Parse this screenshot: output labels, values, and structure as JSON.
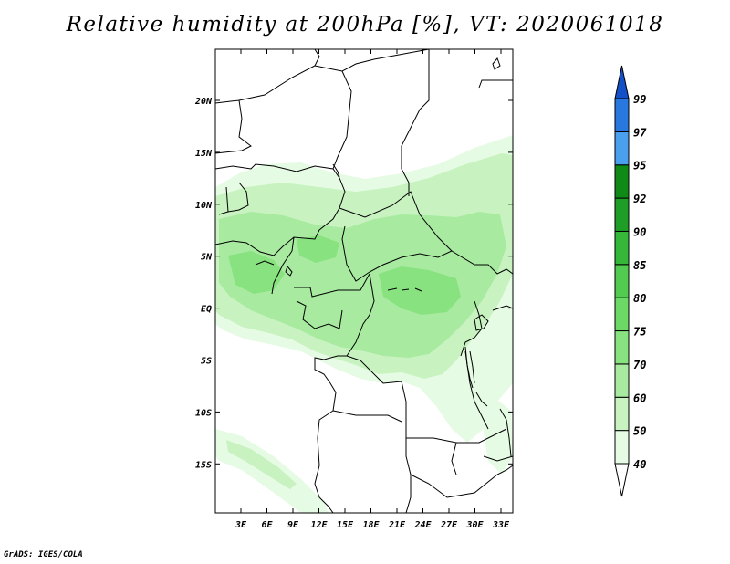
{
  "title": "Relative humidity at 200hPa [%], VT: 2020061018",
  "credit": "GrADS: IGES/COLA",
  "map": {
    "lat_labels": [
      "20N",
      "15N",
      "10N",
      "5N",
      "EQ",
      "5S",
      "10S",
      "15S"
    ],
    "lon_labels": [
      "3E",
      "6E",
      "9E",
      "12E",
      "15E",
      "18E",
      "21E",
      "24E",
      "27E",
      "30E",
      "33E"
    ]
  },
  "colorbar": {
    "levels": [
      "40",
      "50",
      "60",
      "70",
      "75",
      "80",
      "85",
      "90",
      "92",
      "95",
      "97",
      "99"
    ],
    "colors": [
      "#ffffff",
      "#e6fbe3",
      "#c8f3c1",
      "#a8eba0",
      "#88e27f",
      "#6cd966",
      "#51cc50",
      "#35b83a",
      "#1e9e26",
      "#0f8a17",
      "#4aa0ee",
      "#2878e0",
      "#1450c8"
    ]
  }
}
